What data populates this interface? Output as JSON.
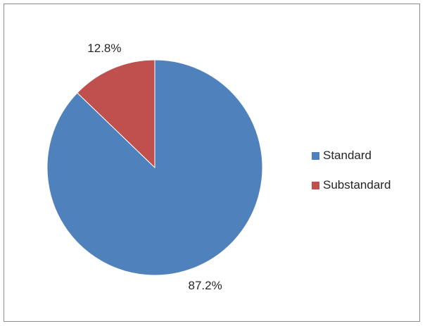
{
  "chart_data": {
    "type": "pie",
    "title": "",
    "categories": [
      "Standard",
      "Substandard"
    ],
    "values": [
      87.2,
      12.8
    ],
    "value_labels": [
      "87.2%",
      "12.8%"
    ],
    "colors": [
      "#4f81bd",
      "#c0504d"
    ],
    "start_angle_deg": 0,
    "direction": "counter-clockwise",
    "legend": {
      "placement": "right",
      "entries": [
        "Standard",
        "Substandard"
      ]
    }
  }
}
